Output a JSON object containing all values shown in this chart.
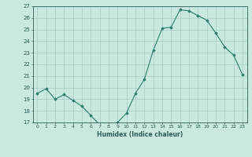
{
  "x": [
    0,
    1,
    2,
    3,
    4,
    5,
    6,
    7,
    8,
    9,
    10,
    11,
    12,
    13,
    14,
    15,
    16,
    17,
    18,
    19,
    20,
    21,
    22,
    23
  ],
  "y": [
    19.5,
    19.9,
    19.0,
    19.4,
    18.9,
    18.4,
    17.6,
    16.8,
    16.8,
    17.0,
    17.8,
    19.5,
    20.7,
    23.2,
    25.1,
    25.2,
    26.7,
    26.6,
    26.2,
    25.8,
    24.7,
    23.5,
    22.8,
    21.1
  ],
  "line_color": "#2e7d6e",
  "marker": "D",
  "marker_size": 1.8,
  "bg_color": "#c8e8e0",
  "grid_color": "#a8ccc8",
  "tick_color": "#2e5d5a",
  "label_color": "#2e5d5a",
  "xlabel": "Humidex (Indice chaleur)",
  "ylim": [
    17,
    27
  ],
  "xlim": [
    -0.5,
    23.5
  ],
  "yticks": [
    17,
    18,
    19,
    20,
    21,
    22,
    23,
    24,
    25,
    26,
    27
  ],
  "xticks": [
    0,
    1,
    2,
    3,
    4,
    5,
    6,
    7,
    8,
    9,
    10,
    11,
    12,
    13,
    14,
    15,
    16,
    17,
    18,
    19,
    20,
    21,
    22,
    23
  ],
  "xtick_labels": [
    "0",
    "1",
    "2",
    "3",
    "4",
    "5",
    "6",
    "7",
    "8",
    "9",
    "10",
    "11",
    "12",
    "13",
    "14",
    "15",
    "16",
    "17",
    "18",
    "19",
    "20",
    "21",
    "22",
    "23"
  ]
}
